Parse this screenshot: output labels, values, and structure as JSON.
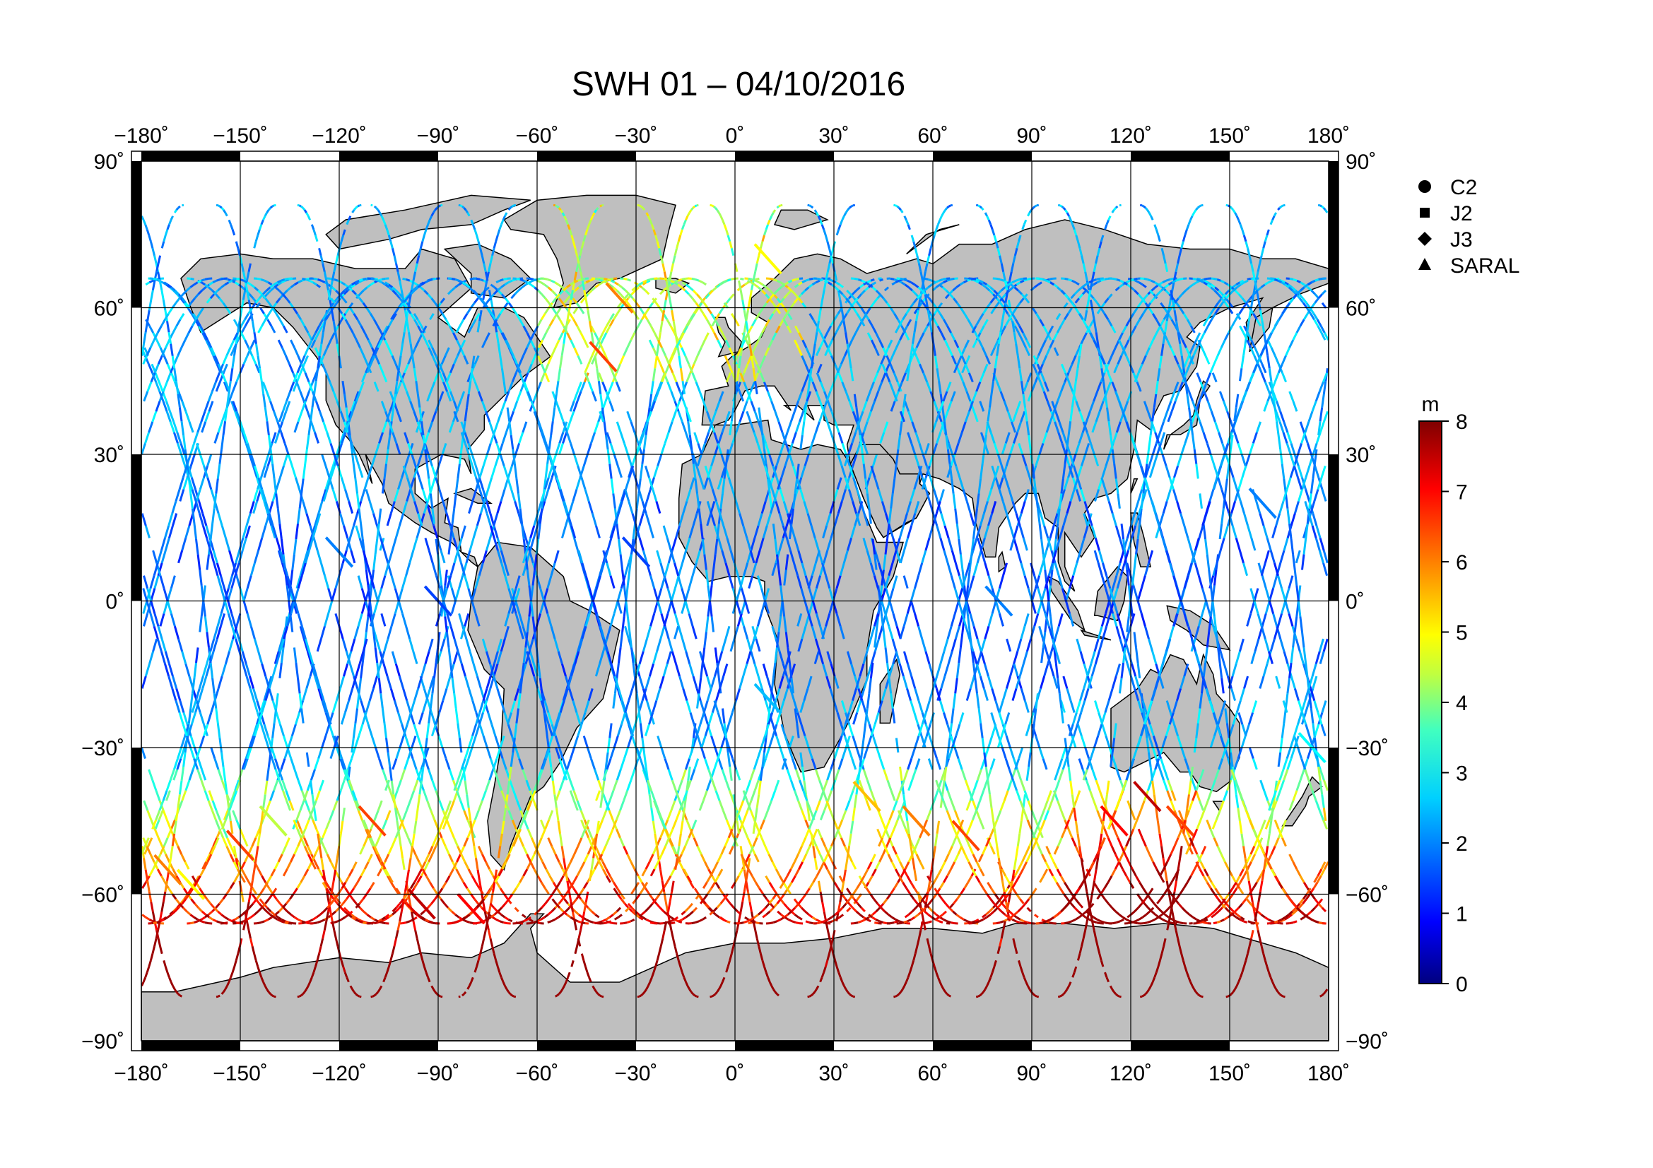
{
  "title": "SWH 01 – 04/10/2016",
  "colors": {
    "land": "#bfbfbf",
    "grid": "#000000",
    "frame": "#000000",
    "ocean": "#ffffff"
  },
  "map": {
    "projection": "equirectangular",
    "lon_range": [
      -180,
      180
    ],
    "lat_range": [
      -90,
      90
    ],
    "lon_ticks": [
      -180,
      -150,
      -120,
      -90,
      -60,
      -30,
      0,
      30,
      60,
      90,
      120,
      150,
      180
    ],
    "lat_ticks": [
      90,
      60,
      30,
      0,
      -30,
      -60,
      -90
    ],
    "lon_tick_labels": [
      "−180˚",
      "−150˚",
      "−120˚",
      "−90˚",
      "−60˚",
      "−30˚",
      "0˚",
      "30˚",
      "60˚",
      "90˚",
      "120˚",
      "150˚",
      "180˚"
    ],
    "lat_tick_labels": [
      "90˚",
      "60˚",
      "30˚",
      "0˚",
      "−30˚",
      "−60˚",
      "−90˚"
    ]
  },
  "legend": {
    "placement": "top-right",
    "items": [
      {
        "label": "C2",
        "marker": "circle-icon"
      },
      {
        "label": "J2",
        "marker": "square-icon"
      },
      {
        "label": "J3",
        "marker": "diamond-icon"
      },
      {
        "label": "SARAL",
        "marker": "triangle-icon"
      }
    ]
  },
  "colorbar": {
    "unit": "m",
    "min": 0,
    "max": 8,
    "tick_labels": [
      "8",
      "7",
      "6",
      "5",
      "4",
      "3",
      "2",
      "1",
      "0"
    ],
    "colormap": [
      "#00007f",
      "#0000ff",
      "#007fff",
      "#00ffff",
      "#7fff7f",
      "#ffff00",
      "#ff7f00",
      "#ff0000",
      "#7f0000"
    ]
  },
  "chart_data": {
    "type": "scatter",
    "title": "SWH 01 – 04/10/2016",
    "xlabel": "",
    "ylabel": "",
    "xlim": [
      -180,
      180
    ],
    "ylim": [
      -90,
      90
    ],
    "value_unit": "m",
    "value_range": [
      0,
      8
    ],
    "grid": true,
    "legend_placement": "top-right",
    "series": [
      {
        "name": "C2"
      },
      {
        "name": "J2"
      },
      {
        "name": "J3"
      },
      {
        "name": "SARAL"
      }
    ],
    "tracks_description_note": "",
    "track_samples": [
      {
        "lon": -172,
        "lat": -55,
        "swh": 6.0
      },
      {
        "lon": -165,
        "lat": -58,
        "swh": 5.0
      },
      {
        "lon": -150,
        "lat": -50,
        "swh": 6.5
      },
      {
        "lon": -140,
        "lat": -45,
        "swh": 4.5
      },
      {
        "lon": -110,
        "lat": -45,
        "swh": 6.5
      },
      {
        "lon": -95,
        "lat": -62,
        "swh": 7.5
      },
      {
        "lon": -80,
        "lat": -63,
        "swh": 7.0
      },
      {
        "lon": -40,
        "lat": 50,
        "swh": 6.5
      },
      {
        "lon": -35,
        "lat": 62,
        "swh": 6.0
      },
      {
        "lon": 10,
        "lat": 70,
        "swh": 5.0
      },
      {
        "lon": 40,
        "lat": -40,
        "swh": 5.5
      },
      {
        "lon": 55,
        "lat": -45,
        "swh": 6.0
      },
      {
        "lon": 70,
        "lat": -48,
        "swh": 6.5
      },
      {
        "lon": 115,
        "lat": -45,
        "swh": 7.0
      },
      {
        "lon": 125,
        "lat": -40,
        "swh": 7.5
      },
      {
        "lon": 135,
        "lat": -45,
        "swh": 6.5
      },
      {
        "lon": -120,
        "lat": 10,
        "swh": 2.0
      },
      {
        "lon": -90,
        "lat": 0,
        "swh": 1.5
      },
      {
        "lon": -30,
        "lat": 10,
        "swh": 1.5
      },
      {
        "lon": 10,
        "lat": -20,
        "swh": 2.5
      },
      {
        "lon": 80,
        "lat": 0,
        "swh": 2.0
      },
      {
        "lon": 160,
        "lat": 20,
        "swh": 2.0
      },
      {
        "lon": 175,
        "lat": -30,
        "swh": 3.0
      }
    ]
  }
}
